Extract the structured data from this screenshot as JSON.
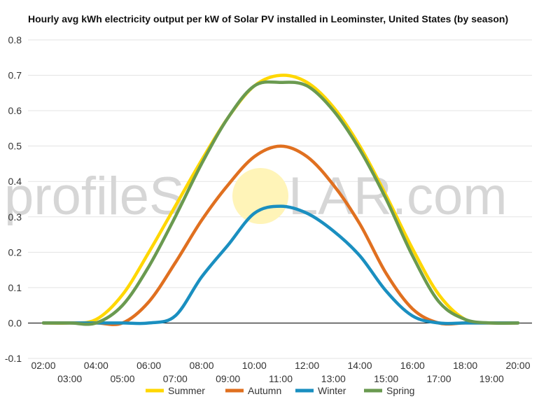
{
  "chart_data": {
    "type": "line",
    "title": "Hourly avg kWh electricity output per kW of Solar PV installed in Leominster, United States (by season)",
    "xlabel": "",
    "ylabel": "",
    "ylim": [
      -0.1,
      0.8
    ],
    "yticks": [
      "-0.1",
      "0.0",
      "0.1",
      "0.2",
      "0.3",
      "0.4",
      "0.5",
      "0.6",
      "0.7",
      "0.8"
    ],
    "x": [
      "02:00",
      "03:00",
      "04:00",
      "05:00",
      "06:00",
      "07:00",
      "08:00",
      "09:00",
      "10:00",
      "11:00",
      "12:00",
      "13:00",
      "14:00",
      "15:00",
      "16:00",
      "17:00",
      "18:00",
      "19:00",
      "20:00"
    ],
    "grid": true,
    "legend_position": "bottom",
    "series": [
      {
        "name": "Summer",
        "color": "#ffd700",
        "values": [
          0.0,
          0.0,
          0.01,
          0.08,
          0.2,
          0.33,
          0.46,
          0.58,
          0.67,
          0.7,
          0.68,
          0.61,
          0.5,
          0.36,
          0.21,
          0.08,
          0.01,
          0.0,
          0.0
        ]
      },
      {
        "name": "Autumn",
        "color": "#e07020",
        "values": [
          0.0,
          0.0,
          0.0,
          0.0,
          0.06,
          0.17,
          0.29,
          0.39,
          0.47,
          0.5,
          0.47,
          0.39,
          0.28,
          0.14,
          0.04,
          0.0,
          0.0,
          0.0,
          0.0
        ]
      },
      {
        "name": "Winter",
        "color": "#1a8fc0",
        "values": [
          0.0,
          0.0,
          0.0,
          0.0,
          0.0,
          0.02,
          0.13,
          0.22,
          0.31,
          0.33,
          0.31,
          0.26,
          0.19,
          0.09,
          0.02,
          0.0,
          0.0,
          0.0,
          0.0
        ]
      },
      {
        "name": "Spring",
        "color": "#6a9a50",
        "values": [
          0.0,
          0.0,
          0.0,
          0.05,
          0.16,
          0.3,
          0.45,
          0.58,
          0.67,
          0.68,
          0.67,
          0.6,
          0.49,
          0.35,
          0.19,
          0.06,
          0.01,
          0.0,
          0.0
        ]
      }
    ]
  },
  "watermark": {
    "left": "profileS",
    "right": "LAR.com",
    "sun_color": "#fff4b8"
  }
}
